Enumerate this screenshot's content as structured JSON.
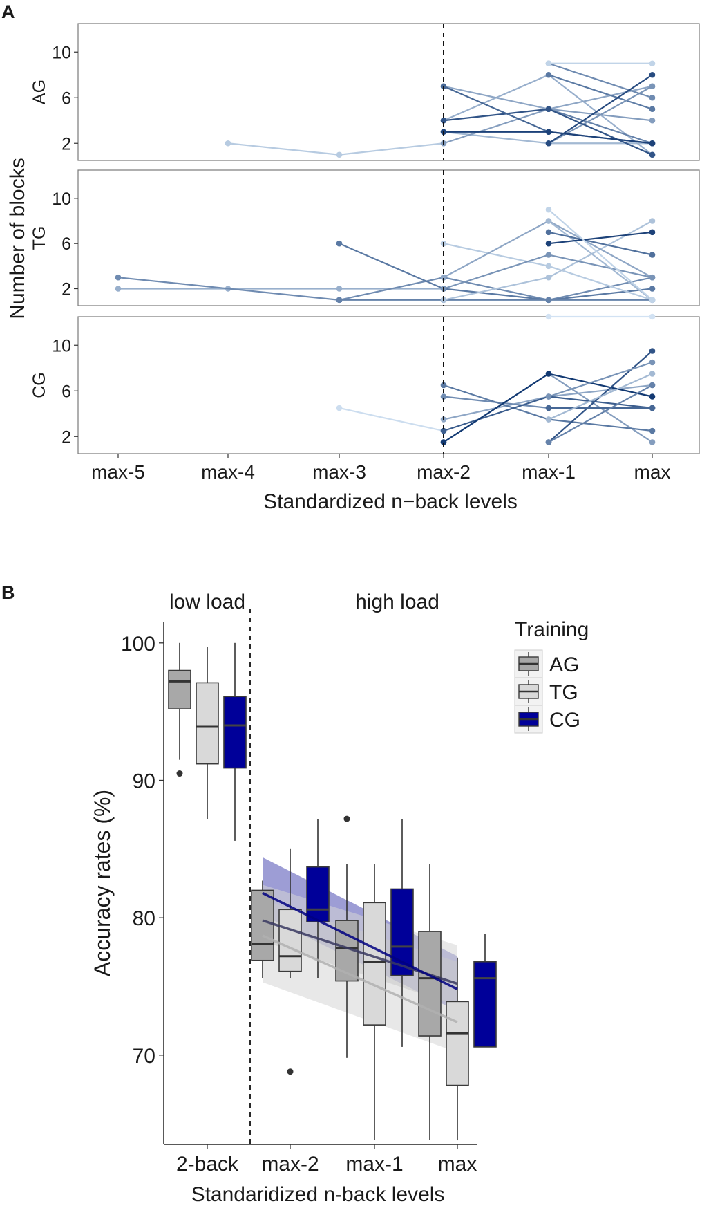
{
  "panel_a_label": "A",
  "panel_b_label": "B",
  "chart_data": [
    {
      "type": "line",
      "title": "",
      "xlabel": "Standardized n−back levels",
      "ylabel": "Number of blocks",
      "x_categories": [
        "max-5",
        "max-4",
        "max-3",
        "max-2",
        "max-1",
        "max"
      ],
      "y_ticks": [
        2,
        6,
        10
      ],
      "ylim": [
        0.5,
        12.5
      ],
      "reference_line_at": "max-2",
      "facets": [
        {
          "label": "AG",
          "series": [
            {
              "x": [
                -4,
                -3,
                -2
              ],
              "y": [
                2,
                1,
                2
              ],
              "shade": 0.15
            },
            {
              "x": [
                -2,
                -1,
                0
              ],
              "y": [
                3,
                2,
                2
              ],
              "shade": 0.25
            },
            {
              "x": [
                -2,
                -1,
                0
              ],
              "y": [
                4,
                8,
                1
              ],
              "shade": 0.3
            },
            {
              "x": [
                -2,
                -1,
                0
              ],
              "y": [
                2,
                5,
                4
              ],
              "shade": 0.4
            },
            {
              "x": [
                -2,
                -1,
                0
              ],
              "y": [
                7,
                5,
                7
              ],
              "shade": 0.35
            },
            {
              "x": [
                -1,
                0
              ],
              "y": [
                8,
                5
              ],
              "shade": 0.6
            },
            {
              "x": [
                -1,
                0
              ],
              "y": [
                5,
                2
              ],
              "shade": 0.55
            },
            {
              "x": [
                -1,
                0
              ],
              "y": [
                2,
                7
              ],
              "shade": 0.45
            },
            {
              "x": [
                -1,
                0
              ],
              "y": [
                9,
                6
              ],
              "shade": 0.5
            },
            {
              "x": [
                -2,
                -1,
                0
              ],
              "y": [
                4,
                5,
                1
              ],
              "shade": 0.8
            },
            {
              "x": [
                -2,
                -1,
                0
              ],
              "y": [
                7,
                3,
                2
              ],
              "shade": 0.7
            },
            {
              "x": [
                -2,
                -1,
                0
              ],
              "y": [
                3,
                3,
                2
              ],
              "shade": 0.9
            },
            {
              "x": [
                -1,
                0
              ],
              "y": [
                2,
                8
              ],
              "shade": 0.85
            },
            {
              "x": [
                -1,
                0
              ],
              "y": [
                9,
                9
              ],
              "shade": 0.1
            }
          ]
        },
        {
          "label": "TG",
          "series": [
            {
              "x": [
                -5,
                -4,
                -3,
                -2
              ],
              "y": [
                2,
                2,
                2,
                2
              ],
              "shade": 0.3
            },
            {
              "x": [
                -5,
                -3,
                -2,
                -1,
                0
              ],
              "y": [
                3,
                1,
                3,
                1,
                3
              ],
              "shade": 0.5
            },
            {
              "x": [
                -3,
                -2,
                -1,
                0
              ],
              "y": [
                6,
                2,
                1,
                2
              ],
              "shade": 0.6
            },
            {
              "x": [
                -3,
                -2,
                -1,
                0
              ],
              "y": [
                1,
                1,
                1,
                1
              ],
              "shade": 0.55
            },
            {
              "x": [
                -2,
                -1,
                0
              ],
              "y": [
                6,
                4,
                1
              ],
              "shade": 0.15
            },
            {
              "x": [
                -2,
                -1,
                0
              ],
              "y": [
                1,
                3,
                8
              ],
              "shade": 0.2
            },
            {
              "x": [
                -2,
                -1,
                0
              ],
              "y": [
                3,
                8,
                3
              ],
              "shade": 0.35
            },
            {
              "x": [
                -2,
                -1,
                0
              ],
              "y": [
                2,
                5,
                3
              ],
              "shade": 0.45
            },
            {
              "x": [
                -1,
                0
              ],
              "y": [
                8,
                1
              ],
              "shade": 0.25
            },
            {
              "x": [
                -1,
                0
              ],
              "y": [
                7,
                5
              ],
              "shade": 0.65
            },
            {
              "x": [
                -1,
                0
              ],
              "y": [
                6,
                7
              ],
              "shade": 0.9
            },
            {
              "x": [
                -1,
                0
              ],
              "y": [
                9,
                1
              ],
              "shade": 0.1
            }
          ]
        },
        {
          "label": "CG",
          "series": [
            {
              "x": [
                -3,
                -2
              ],
              "y": [
                4.5,
                2.5
              ],
              "shade": 0.05
            },
            {
              "x": [
                -2,
                -1,
                0
              ],
              "y": [
                1.5,
                7.5,
                1.5
              ],
              "shade": 0.4
            },
            {
              "x": [
                -2,
                -1,
                0
              ],
              "y": [
                3.5,
                5.5,
                6.5
              ],
              "shade": 0.35
            },
            {
              "x": [
                -2,
                -1,
                0
              ],
              "y": [
                5.5,
                4.5,
                4.5
              ],
              "shade": 0.5
            },
            {
              "x": [
                -2,
                -1,
                0
              ],
              "y": [
                6.5,
                3.5,
                2.5
              ],
              "shade": 0.6
            },
            {
              "x": [
                -2,
                -1,
                0
              ],
              "y": [
                2.5,
                5.5,
                4.5
              ],
              "shade": 0.75
            },
            {
              "x": [
                -2,
                -1,
                0
              ],
              "y": [
                1.5,
                7.5,
                5.5
              ],
              "shade": 0.95
            },
            {
              "x": [
                -1,
                0
              ],
              "y": [
                1.5,
                9.5
              ],
              "shade": 0.8
            },
            {
              "x": [
                -1,
                0
              ],
              "y": [
                4.5,
                4.5
              ],
              "shade": 0.7
            },
            {
              "x": [
                -1,
                0
              ],
              "y": [
                5.5,
                8.5
              ],
              "shade": 0.45
            },
            {
              "x": [
                -1,
                0
              ],
              "y": [
                3.5,
                7.5
              ],
              "shade": 0.25
            },
            {
              "x": [
                -1,
                0
              ],
              "y": [
                1.5,
                6.5
              ],
              "shade": 0.55
            },
            {
              "x": [
                -1,
                0
              ],
              "y": [
                12.5,
                12.5
              ],
              "shade": 0.02
            }
          ]
        }
      ]
    },
    {
      "type": "boxplot",
      "title": "",
      "xlabel": "Standaridized n-back levels",
      "ylabel": "Accuracy rates (%)",
      "categories": [
        "2-back",
        "max-2",
        "max-1",
        "max"
      ],
      "group_labels": [
        {
          "label": "low load",
          "spans": [
            "2-back"
          ]
        },
        {
          "label": "high load",
          "spans": [
            "max-2",
            "max-1",
            "max"
          ]
        }
      ],
      "ylim": [
        63.5,
        101.5
      ],
      "y_ticks": [
        70,
        80,
        90,
        100
      ],
      "legend": {
        "title": "Training",
        "entries": [
          "AG",
          "TG",
          "CG"
        ],
        "position": "right"
      },
      "colors": {
        "AG": "#a8a8a8",
        "TG": "#d9d9d9",
        "CG": "#000099"
      },
      "series": [
        {
          "name": "AG",
          "boxes": [
            {
              "min": 91.5,
              "q1": 95.2,
              "median": 97.2,
              "q3": 98.0,
              "max": 100.0,
              "outliers": [
                90.5
              ]
            },
            {
              "min": 75.6,
              "q1": 76.9,
              "median": 78.1,
              "q3": 82.0,
              "max": 82.7,
              "outliers": []
            },
            {
              "min": 69.8,
              "q1": 75.4,
              "median": 77.8,
              "q3": 79.8,
              "max": 83.9,
              "outliers": [
                87.2
              ]
            },
            {
              "min": 63.8,
              "q1": 71.4,
              "median": 75.6,
              "q3": 79.0,
              "max": 83.9,
              "outliers": []
            }
          ]
        },
        {
          "name": "TG",
          "boxes": [
            {
              "min": 87.2,
              "q1": 91.2,
              "median": 93.9,
              "q3": 97.1,
              "max": 99.7,
              "outliers": []
            },
            {
              "min": 75.6,
              "q1": 76.1,
              "median": 77.2,
              "q3": 80.6,
              "max": 85.0,
              "outliers": [
                68.8
              ]
            },
            {
              "min": 63.8,
              "q1": 72.2,
              "median": 76.8,
              "q3": 81.1,
              "max": 83.9,
              "outliers": []
            },
            {
              "min": 63.8,
              "q1": 67.8,
              "median": 71.6,
              "q3": 73.9,
              "max": 77.1,
              "outliers": []
            }
          ]
        },
        {
          "name": "CG",
          "boxes": [
            {
              "min": 85.6,
              "q1": 90.9,
              "median": 94.0,
              "q3": 96.1,
              "max": 100.0,
              "outliers": []
            },
            {
              "min": 75.6,
              "q1": 79.7,
              "median": 80.6,
              "q3": 83.7,
              "max": 87.2,
              "outliers": []
            },
            {
              "min": 70.6,
              "q1": 75.8,
              "median": 77.9,
              "q3": 82.1,
              "max": 87.2,
              "outliers": []
            },
            {
              "min": 70.6,
              "q1": 70.6,
              "median": 75.6,
              "q3": 76.8,
              "max": 78.8,
              "outliers": []
            }
          ]
        }
      ],
      "trend_lines": [
        {
          "name": "CG",
          "x": [
            "max-2",
            "max"
          ],
          "y": [
            81.8,
            74.8
          ],
          "band": [
            [
              80.2,
              84.4
            ],
            [
              73.2,
              77.2
            ]
          ],
          "color": "#000080",
          "band_color": "#4d4db3"
        },
        {
          "name": "AG",
          "x": [
            "max-2",
            "max"
          ],
          "y": [
            79.8,
            75.2
          ],
          "band": [
            [
              78.3,
              81.3
            ],
            [
              73.6,
              76.8
            ]
          ],
          "color": "#383860",
          "band_color": "#bbbbbb"
        },
        {
          "name": "TG",
          "x": [
            "max-2",
            "max"
          ],
          "y": [
            78.7,
            72.4
          ],
          "band": [
            [
              75.3,
              82.4
            ],
            [
              70.2,
              78.0
            ]
          ],
          "color": "#b0b0b0",
          "band_color": "#d6d6d6"
        }
      ]
    }
  ]
}
